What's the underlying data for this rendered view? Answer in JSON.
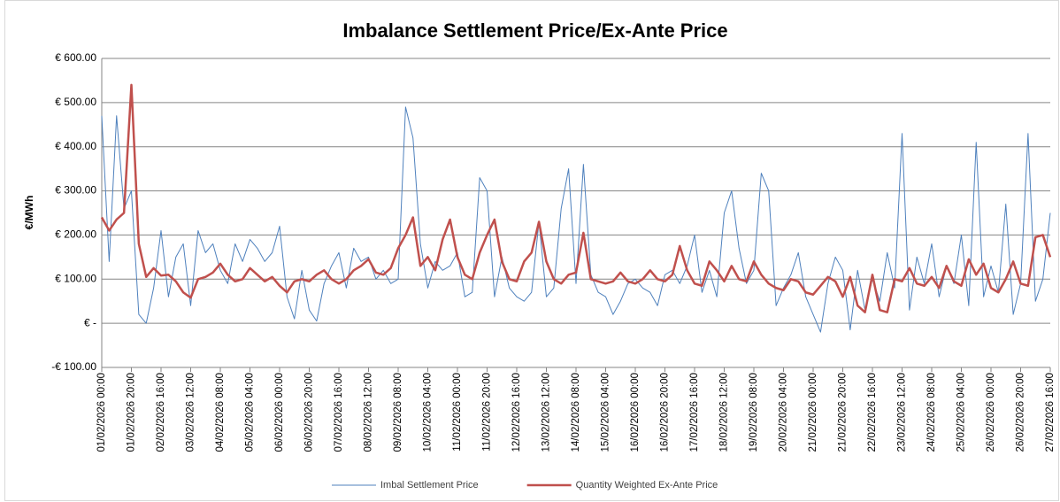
{
  "chart_data": {
    "type": "line",
    "title": "Imbalance Settlement Price/Ex-Ante Price",
    "y_label": "€/MWh",
    "categories": [
      "01/02/2026 00:00",
      null,
      null,
      null,
      "01/02/2026 20:00",
      null,
      null,
      null,
      "02/02/2026 16:00",
      null,
      null,
      null,
      "03/02/2026 12:00",
      null,
      null,
      null,
      "04/02/2026 08:00",
      null,
      null,
      null,
      "05/02/2026 04:00",
      null,
      null,
      null,
      "06/02/2026 00:00",
      null,
      null,
      null,
      "06/02/2026 20:00",
      null,
      null,
      null,
      "07/02/2026 16:00",
      null,
      null,
      null,
      "08/02/2026 12:00",
      null,
      null,
      null,
      "09/02/2026 08:00",
      null,
      null,
      null,
      "10/02/2026 04:00",
      null,
      null,
      null,
      "11/02/2026 00:00",
      null,
      null,
      null,
      "11/02/2026 20:00",
      null,
      null,
      null,
      "12/02/2026 16:00",
      null,
      null,
      null,
      "13/02/2026 12:00",
      null,
      null,
      null,
      "14/02/2026 08:00",
      null,
      null,
      null,
      "15/02/2026 04:00",
      null,
      null,
      null,
      "16/02/2026 00:00",
      null,
      null,
      null,
      "16/02/2026 20:00",
      null,
      null,
      null,
      "17/02/2026 16:00",
      null,
      null,
      null,
      "18/02/2026 12:00",
      null,
      null,
      null,
      "19/02/2026 08:00",
      null,
      null,
      null,
      "20/02/2026 04:00",
      null,
      null,
      null,
      "21/02/2026 00:00",
      null,
      null,
      null,
      "21/02/2026 20:00",
      null,
      null,
      null,
      "22/02/2026 16:00",
      null,
      null,
      null,
      "23/02/2026 12:00",
      null,
      null,
      null,
      "24/02/2026 08:00",
      null,
      null,
      null,
      "25/02/2026 04:00",
      null,
      null,
      null,
      "26/02/2026 00:00",
      null,
      null,
      null,
      "26/02/2026 20:00",
      null,
      null,
      null,
      "27/02/2026 16:00"
    ],
    "series": [
      {
        "name": "Imbal Settlement Price",
        "color": "#4f81bd",
        "width": 1,
        "values": [
          470,
          140,
          470,
          260,
          300,
          20,
          0,
          80,
          210,
          60,
          150,
          180,
          40,
          210,
          160,
          180,
          120,
          90,
          180,
          140,
          190,
          170,
          140,
          160,
          220,
          60,
          10,
          120,
          30,
          5,
          90,
          130,
          160,
          80,
          170,
          140,
          150,
          100,
          120,
          90,
          100,
          490,
          420,
          180,
          80,
          140,
          120,
          130,
          160,
          60,
          70,
          330,
          300,
          60,
          150,
          80,
          60,
          50,
          70,
          230,
          60,
          80,
          260,
          350,
          90,
          360,
          110,
          70,
          60,
          20,
          50,
          90,
          100,
          80,
          70,
          40,
          110,
          120,
          90,
          130,
          200,
          70,
          120,
          60,
          250,
          300,
          170,
          90,
          120,
          340,
          300,
          40,
          80,
          110,
          160,
          60,
          20,
          -20,
          90,
          150,
          120,
          -15,
          120,
          30,
          100,
          50,
          160,
          80,
          430,
          30,
          150,
          90,
          180,
          60,
          130,
          90,
          200,
          40,
          410,
          60,
          130,
          70,
          270,
          20,
          90,
          430,
          50,
          100,
          250
        ]
      },
      {
        "name": "Quantity Weighted Ex-Ante Price",
        "color": "#c0504d",
        "width": 2.5,
        "values": [
          240,
          210,
          235,
          250,
          540,
          180,
          105,
          125,
          108,
          110,
          95,
          70,
          58,
          100,
          105,
          115,
          135,
          110,
          95,
          100,
          125,
          110,
          95,
          105,
          85,
          70,
          95,
          100,
          95,
          110,
          120,
          100,
          90,
          100,
          120,
          130,
          145,
          115,
          110,
          125,
          170,
          200,
          240,
          130,
          150,
          120,
          190,
          235,
          150,
          110,
          100,
          160,
          200,
          235,
          140,
          100,
          95,
          140,
          160,
          230,
          140,
          100,
          90,
          110,
          115,
          205,
          100,
          95,
          90,
          95,
          115,
          95,
          90,
          100,
          120,
          100,
          95,
          110,
          175,
          120,
          90,
          85,
          140,
          120,
          95,
          130,
          100,
          95,
          140,
          110,
          90,
          80,
          75,
          100,
          95,
          70,
          65,
          85,
          105,
          95,
          60,
          105,
          40,
          25,
          110,
          30,
          25,
          100,
          95,
          125,
          90,
          85,
          105,
          80,
          130,
          95,
          85,
          145,
          110,
          135,
          80,
          70,
          100,
          140,
          90,
          85,
          195,
          200,
          150
        ]
      }
    ],
    "ylim": [
      -100,
      600
    ],
    "yticks": [
      {
        "value": -100,
        "label": "-€ 100.00"
      },
      {
        "value": 0,
        "label": "€ -"
      },
      {
        "value": 100,
        "label": "€ 100.00"
      },
      {
        "value": 200,
        "label": "€ 200.00"
      },
      {
        "value": 300,
        "label": "€ 300.00"
      },
      {
        "value": 400,
        "label": "€ 400.00"
      },
      {
        "value": 500,
        "label": "€ 500.00"
      },
      {
        "value": 600,
        "label": "€ 600.00"
      }
    ],
    "grid": true,
    "legend": "bottom"
  }
}
